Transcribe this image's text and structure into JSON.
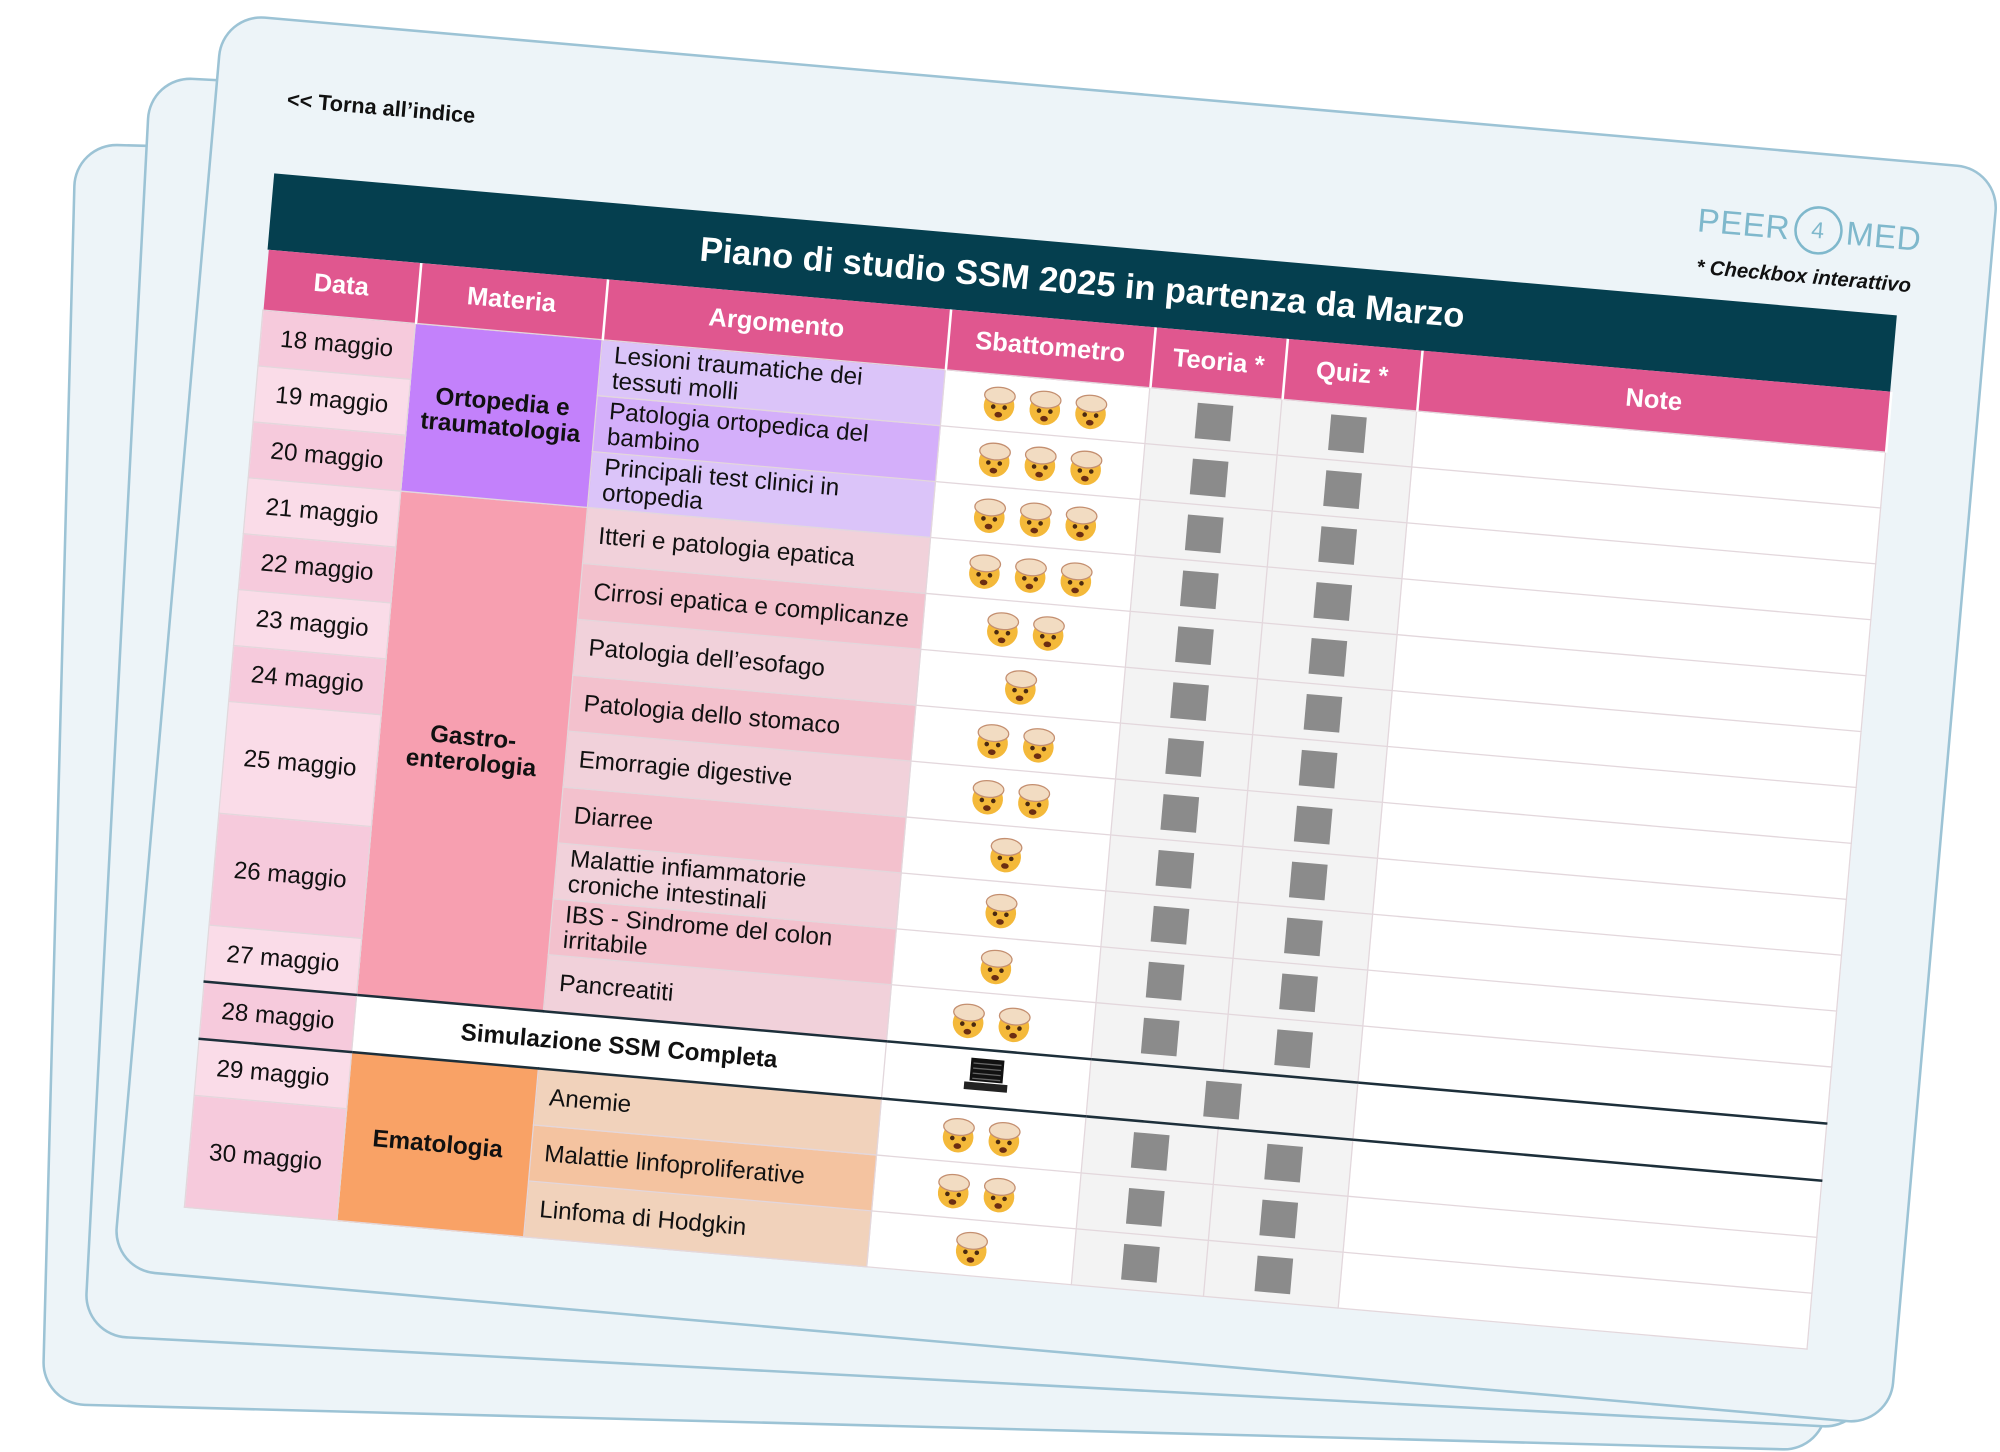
{
  "back_link": "<< Torna all’indice",
  "logo": [
    "PEER",
    "4",
    "MED"
  ],
  "note": "* Checkbox interattivo",
  "title": "Piano di studio SSM 2025 in partenza da Marzo",
  "columns": [
    "Data",
    "Materia",
    "Argomento",
    "Sbattometro",
    "Teoria *",
    "Quiz *",
    "Note"
  ],
  "rows": [
    {
      "date": "18 maggio",
      "subject": "Ortopedia e traumatologia",
      "color": "#c381fb",
      "topic": "Lesioni traumatiche dei tessuti molli",
      "sbattometro": 3
    },
    {
      "date": "19 maggio",
      "topic": "Patologia ortopedica del bambino",
      "sbattometro": 3
    },
    {
      "date": "20 maggio",
      "topic": "Principali test clinici in ortopedia",
      "sbattometro": 3
    },
    {
      "date": "21 maggio",
      "subject": "Gastro-enterologia",
      "color": "#f79fb0",
      "topic": "Itteri e patologia epatica",
      "sbattometro": 3
    },
    {
      "date": "22 maggio",
      "topic": "Cirrosi epatica e complicanze",
      "sbattometro": 2
    },
    {
      "date": "23 maggio",
      "topic": "Patologia dell’esofago",
      "sbattometro": 1
    },
    {
      "date": "24 maggio",
      "topic": "Patologia dello stomaco",
      "sbattometro": 2
    },
    {
      "date": "25 maggio",
      "topic": "Emorragie digestive",
      "sbattometro": 2
    },
    {
      "topic": "Diarree",
      "sbattometro": 1
    },
    {
      "date": "26 maggio",
      "topic": "Malattie infiammatorie croniche intestinali",
      "sbattometro": 1
    },
    {
      "topic": "IBS - Sindrome del colon irritabile",
      "sbattometro": 1
    },
    {
      "date": "27 maggio",
      "topic": "Pancreatiti",
      "sbattometro": 2
    },
    {
      "date": "28 maggio",
      "activity": "Simulazione SSM Completa"
    },
    {
      "date": "29 maggio",
      "subject": "Ematologia",
      "color": "#f9a266",
      "topic": "Anemie",
      "sbattometro": 2
    },
    {
      "date": "30 maggio",
      "topic": "Malattie linfoproliferative",
      "sbattometro": 2
    },
    {
      "topic": "Linfoma di Hodgkin",
      "sbattometro": 1
    }
  ]
}
